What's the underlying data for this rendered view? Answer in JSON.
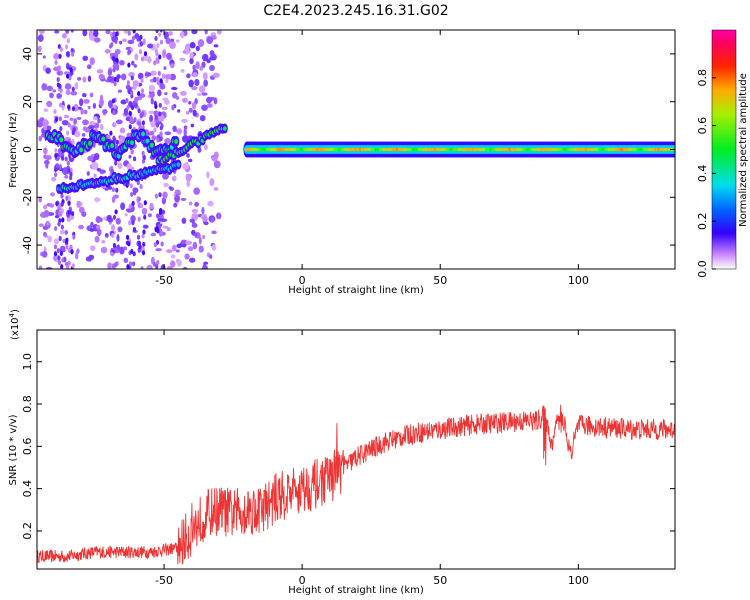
{
  "title": "C2E4.2023.245.16.31.G02",
  "chart_data": [
    {
      "type": "heatmap",
      "xlabel": "Height of straight line (km)",
      "ylabel": "Frequency (Hz)",
      "xlim": [
        -96,
        135
      ],
      "ylim": [
        -50,
        50
      ],
      "xticks": [
        -50,
        0,
        50,
        100
      ],
      "yticks": [
        -40,
        -20,
        0,
        20,
        40
      ],
      "colorbar": {
        "label": "Normalized spectral amplitude",
        "range": [
          0.0,
          1.0
        ],
        "ticks": [
          "0.0",
          "0.2",
          "0.4",
          "0.6",
          "0.8"
        ],
        "tick_values": [
          0.0,
          0.2,
          0.4,
          0.6,
          0.8
        ]
      },
      "features": [
        {
          "name": "main-tone",
          "x": [
            -20,
            135
          ],
          "center_frequency": 0,
          "amplitude": 0.7
        },
        {
          "name": "upper-branch",
          "x": [
            -92,
            -45
          ],
          "center_frequency": 2,
          "amplitude": 0.35
        },
        {
          "name": "lower-branch",
          "x": [
            -88,
            -45
          ],
          "frequency_start": -17,
          "frequency_end": -7,
          "amplitude": 0.3
        },
        {
          "name": "rising-branch",
          "x": [
            -52,
            -28
          ],
          "frequency_start": -5,
          "frequency_end": 9,
          "amplitude": 0.45
        }
      ]
    },
    {
      "type": "line",
      "xlabel": "Height of straight line (km)",
      "ylabel": "SNR (10 * v/v)",
      "yscale_label": "(x10",
      "yscale_exponent": "4",
      "xlim": [
        -96,
        135
      ],
      "ylim": [
        0.02,
        1.15
      ],
      "xticks": [
        -50,
        0,
        50,
        100
      ],
      "yticks": [
        0.2,
        0.4,
        0.6,
        0.8,
        1.0
      ],
      "ytick_labels": [
        "0.2",
        "0.4",
        "0.6",
        "0.8",
        "1.0"
      ],
      "color": "#ee3333",
      "series": [
        {
          "x": [
            -96,
            -85,
            -75,
            -65,
            -55,
            -45,
            -40,
            -35,
            -30,
            -25,
            -20,
            -15,
            -10,
            -5,
            0,
            5,
            10,
            15,
            20,
            30,
            40,
            50,
            60,
            70,
            80,
            85,
            88,
            90,
            92,
            95,
            97,
            100,
            110,
            120,
            130,
            135
          ],
          "y": [
            0.08,
            0.08,
            0.1,
            0.1,
            0.1,
            0.12,
            0.2,
            0.28,
            0.3,
            0.28,
            0.3,
            0.3,
            0.35,
            0.38,
            0.4,
            0.42,
            0.45,
            0.5,
            0.55,
            0.62,
            0.66,
            0.68,
            0.7,
            0.71,
            0.72,
            0.72,
            0.75,
            0.6,
            0.7,
            0.72,
            0.55,
            0.7,
            0.69,
            0.68,
            0.68,
            0.68
          ]
        }
      ]
    }
  ]
}
